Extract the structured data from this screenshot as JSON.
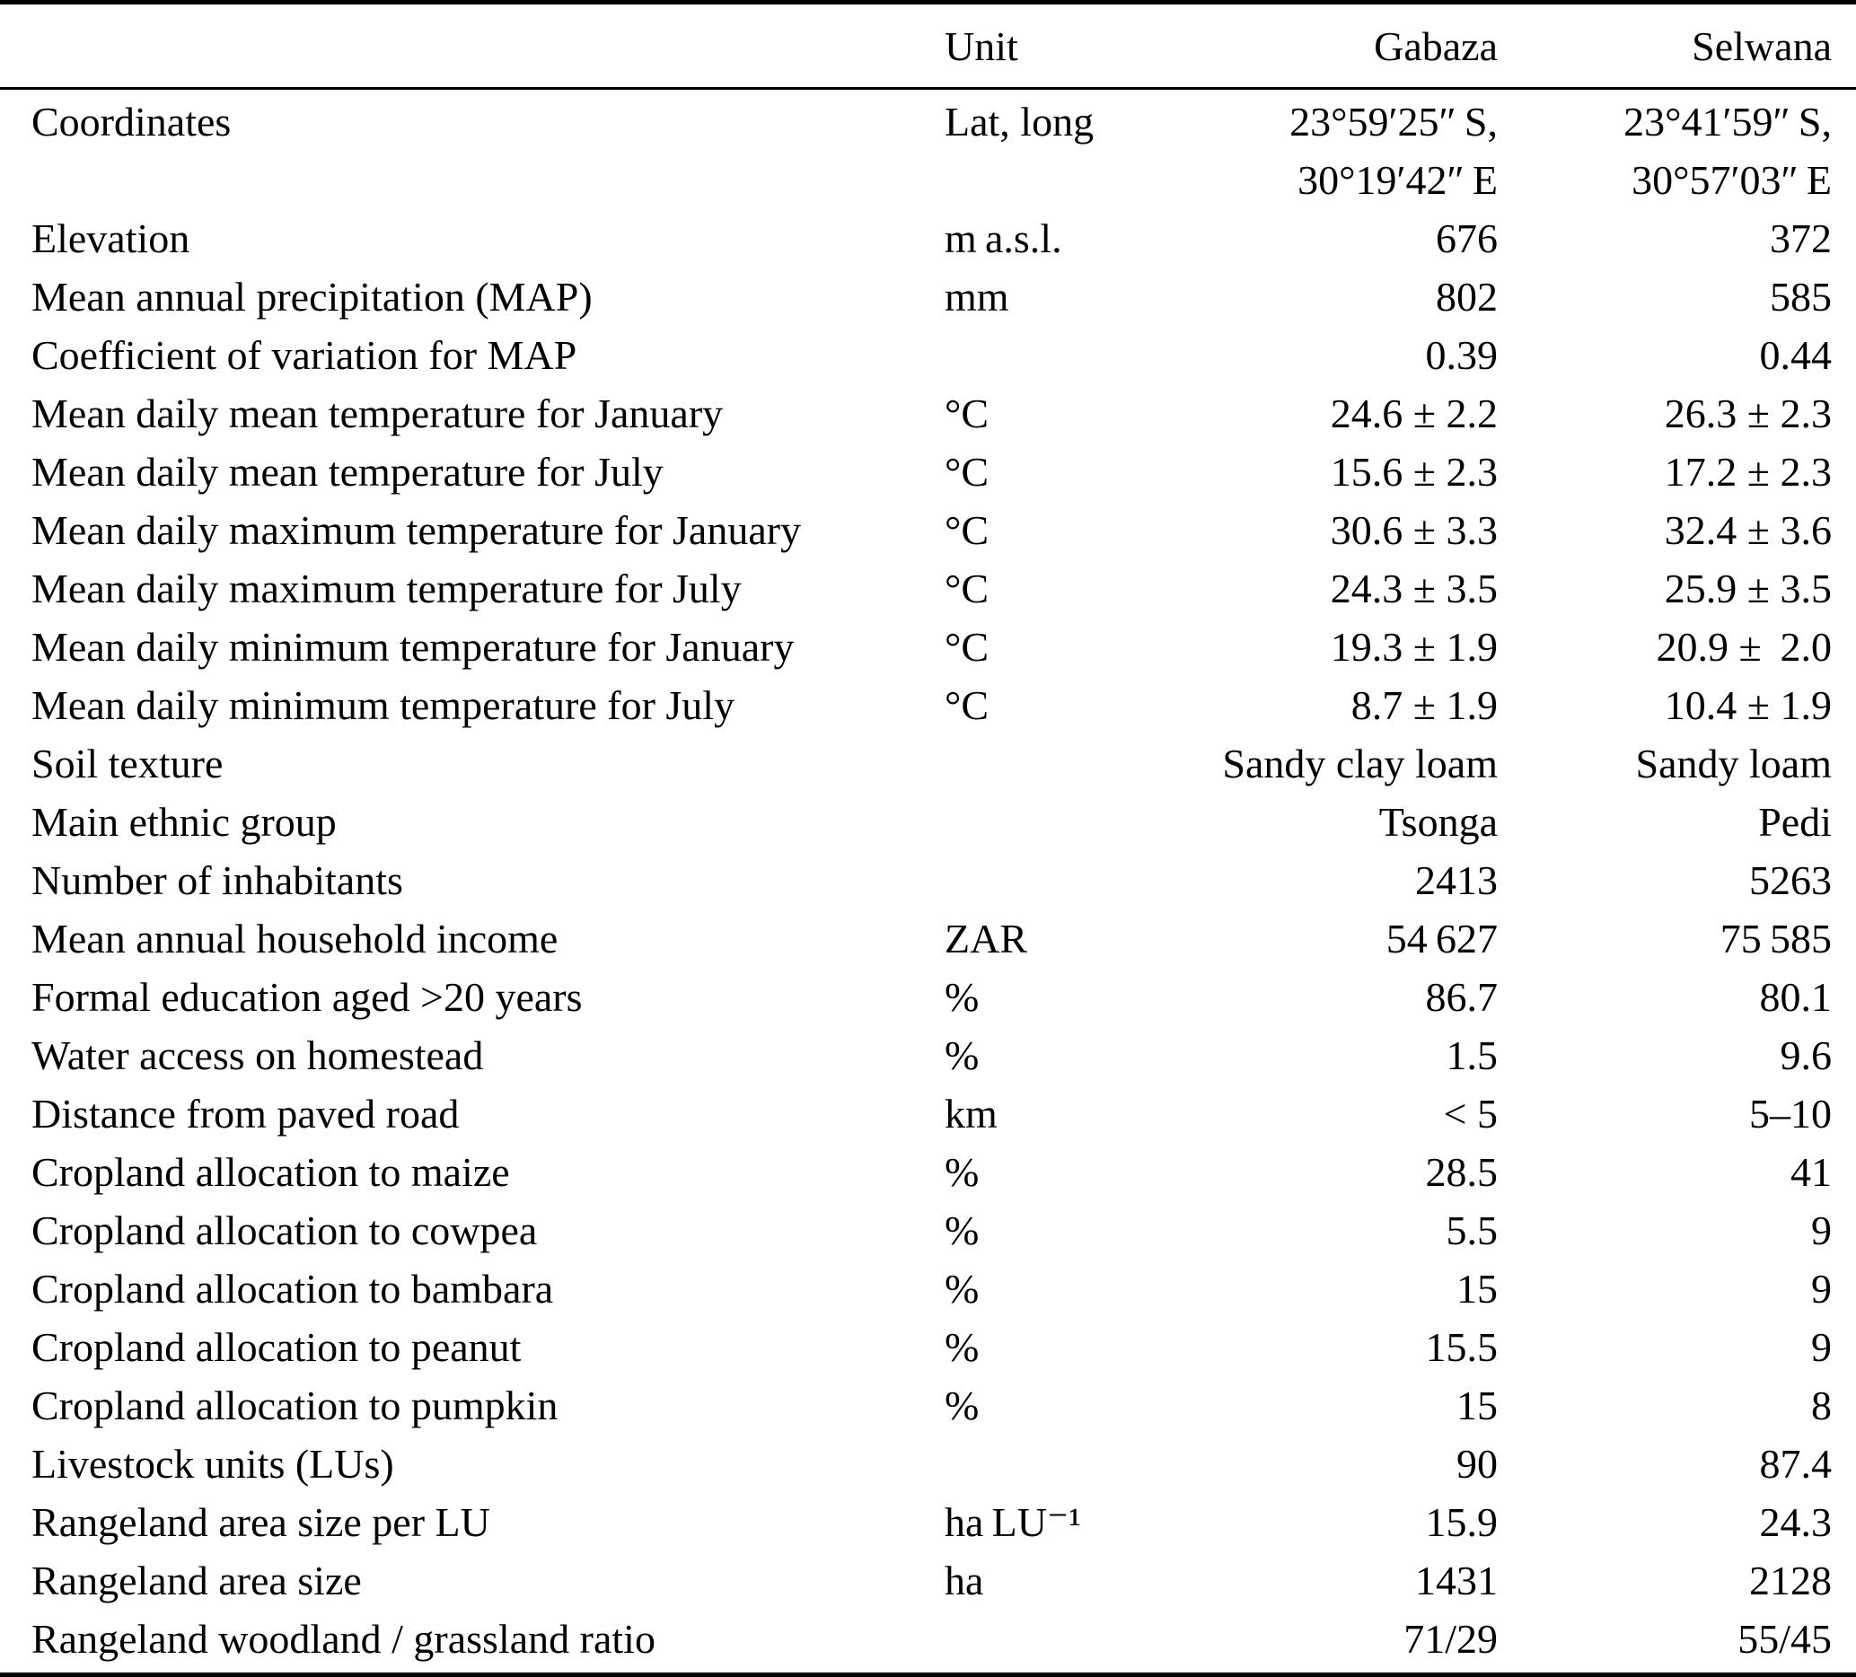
{
  "colors": {
    "text": "#000000",
    "background": "#ffffff",
    "rule": "#000000"
  },
  "table": {
    "columns": [
      "",
      "Unit",
      "Gabaza",
      "Selwana"
    ],
    "rows": [
      {
        "label": "Coordinates",
        "unit": "Lat, long",
        "gabaza": "23°59′25″ S,\n30°19′42″ E",
        "selwana": "23°41′59″ S,\n30°57′03″ E"
      },
      {
        "label": "Elevation",
        "unit": "m a.s.l.",
        "gabaza": "676",
        "selwana": "372"
      },
      {
        "label": "Mean annual precipitation (MAP)",
        "unit": "mm",
        "gabaza": "802",
        "selwana": "585"
      },
      {
        "label": "Coefficient of variation for MAP",
        "unit": "",
        "gabaza": "0.39",
        "selwana": "0.44"
      },
      {
        "label": "Mean daily mean temperature for January",
        "unit": "°C",
        "gabaza": "24.6 ± 2.2",
        "selwana": "26.3 ± 2.3"
      },
      {
        "label": "Mean daily mean temperature for July",
        "unit": "°C",
        "gabaza": "15.6 ± 2.3",
        "selwana": "17.2 ± 2.3"
      },
      {
        "label": "Mean daily maximum temperature for January",
        "unit": "°C",
        "gabaza": "30.6 ± 3.3",
        "selwana": "32.4 ± 3.6"
      },
      {
        "label": "Mean daily maximum temperature for July",
        "unit": "°C",
        "gabaza": "24.3 ± 3.5",
        "selwana": "25.9 ± 3.5"
      },
      {
        "label": "Mean daily minimum temperature for January",
        "unit": "°C",
        "gabaza": "19.3 ± 1.9",
        "selwana": "20.9 ±  2.0"
      },
      {
        "label": "Mean daily minimum temperature for July",
        "unit": "°C",
        "gabaza": "8.7 ± 1.9",
        "selwana": "10.4 ± 1.9"
      },
      {
        "label": "Soil texture",
        "unit": "",
        "gabaza": "Sandy clay loam",
        "selwana": "Sandy loam"
      },
      {
        "label": "Main ethnic group",
        "unit": "",
        "gabaza": "Tsonga",
        "selwana": "Pedi"
      },
      {
        "label": "Number of inhabitants",
        "unit": "",
        "gabaza": "2413",
        "selwana": "5263"
      },
      {
        "label": "Mean annual household income",
        "unit": "ZAR",
        "gabaza": "54 627",
        "selwana": "75 585"
      },
      {
        "label": "Formal education aged >20 years",
        "unit": "%",
        "gabaza": "86.7",
        "selwana": "80.1"
      },
      {
        "label": "Water access on homestead",
        "unit": "%",
        "gabaza": "1.5",
        "selwana": "9.6"
      },
      {
        "label": "Distance from paved road",
        "unit": "km",
        "gabaza": "< 5",
        "selwana": "5–10"
      },
      {
        "label": "Cropland allocation to maize",
        "unit": "%",
        "gabaza": "28.5",
        "selwana": "41"
      },
      {
        "label": "Cropland allocation to cowpea",
        "unit": "%",
        "gabaza": "5.5",
        "selwana": "9"
      },
      {
        "label": "Cropland allocation to bambara",
        "unit": "%",
        "gabaza": "15",
        "selwana": "9"
      },
      {
        "label": "Cropland allocation to peanut",
        "unit": "%",
        "gabaza": "15.5",
        "selwana": "9"
      },
      {
        "label": "Cropland allocation to pumpkin",
        "unit": "%",
        "gabaza": "15",
        "selwana": "8"
      },
      {
        "label": "Livestock units (LUs)",
        "unit": "",
        "gabaza": "90",
        "selwana": "87.4"
      },
      {
        "label": "Rangeland area size per LU",
        "unit": "ha LU⁻¹",
        "gabaza": "15.9",
        "selwana": "24.3"
      },
      {
        "label": "Rangeland area size",
        "unit": "ha",
        "gabaza": "1431",
        "selwana": "2128"
      },
      {
        "label": "Rangeland woodland / grassland ratio",
        "unit": "",
        "gabaza": "71/29",
        "selwana": "55/45"
      }
    ]
  }
}
